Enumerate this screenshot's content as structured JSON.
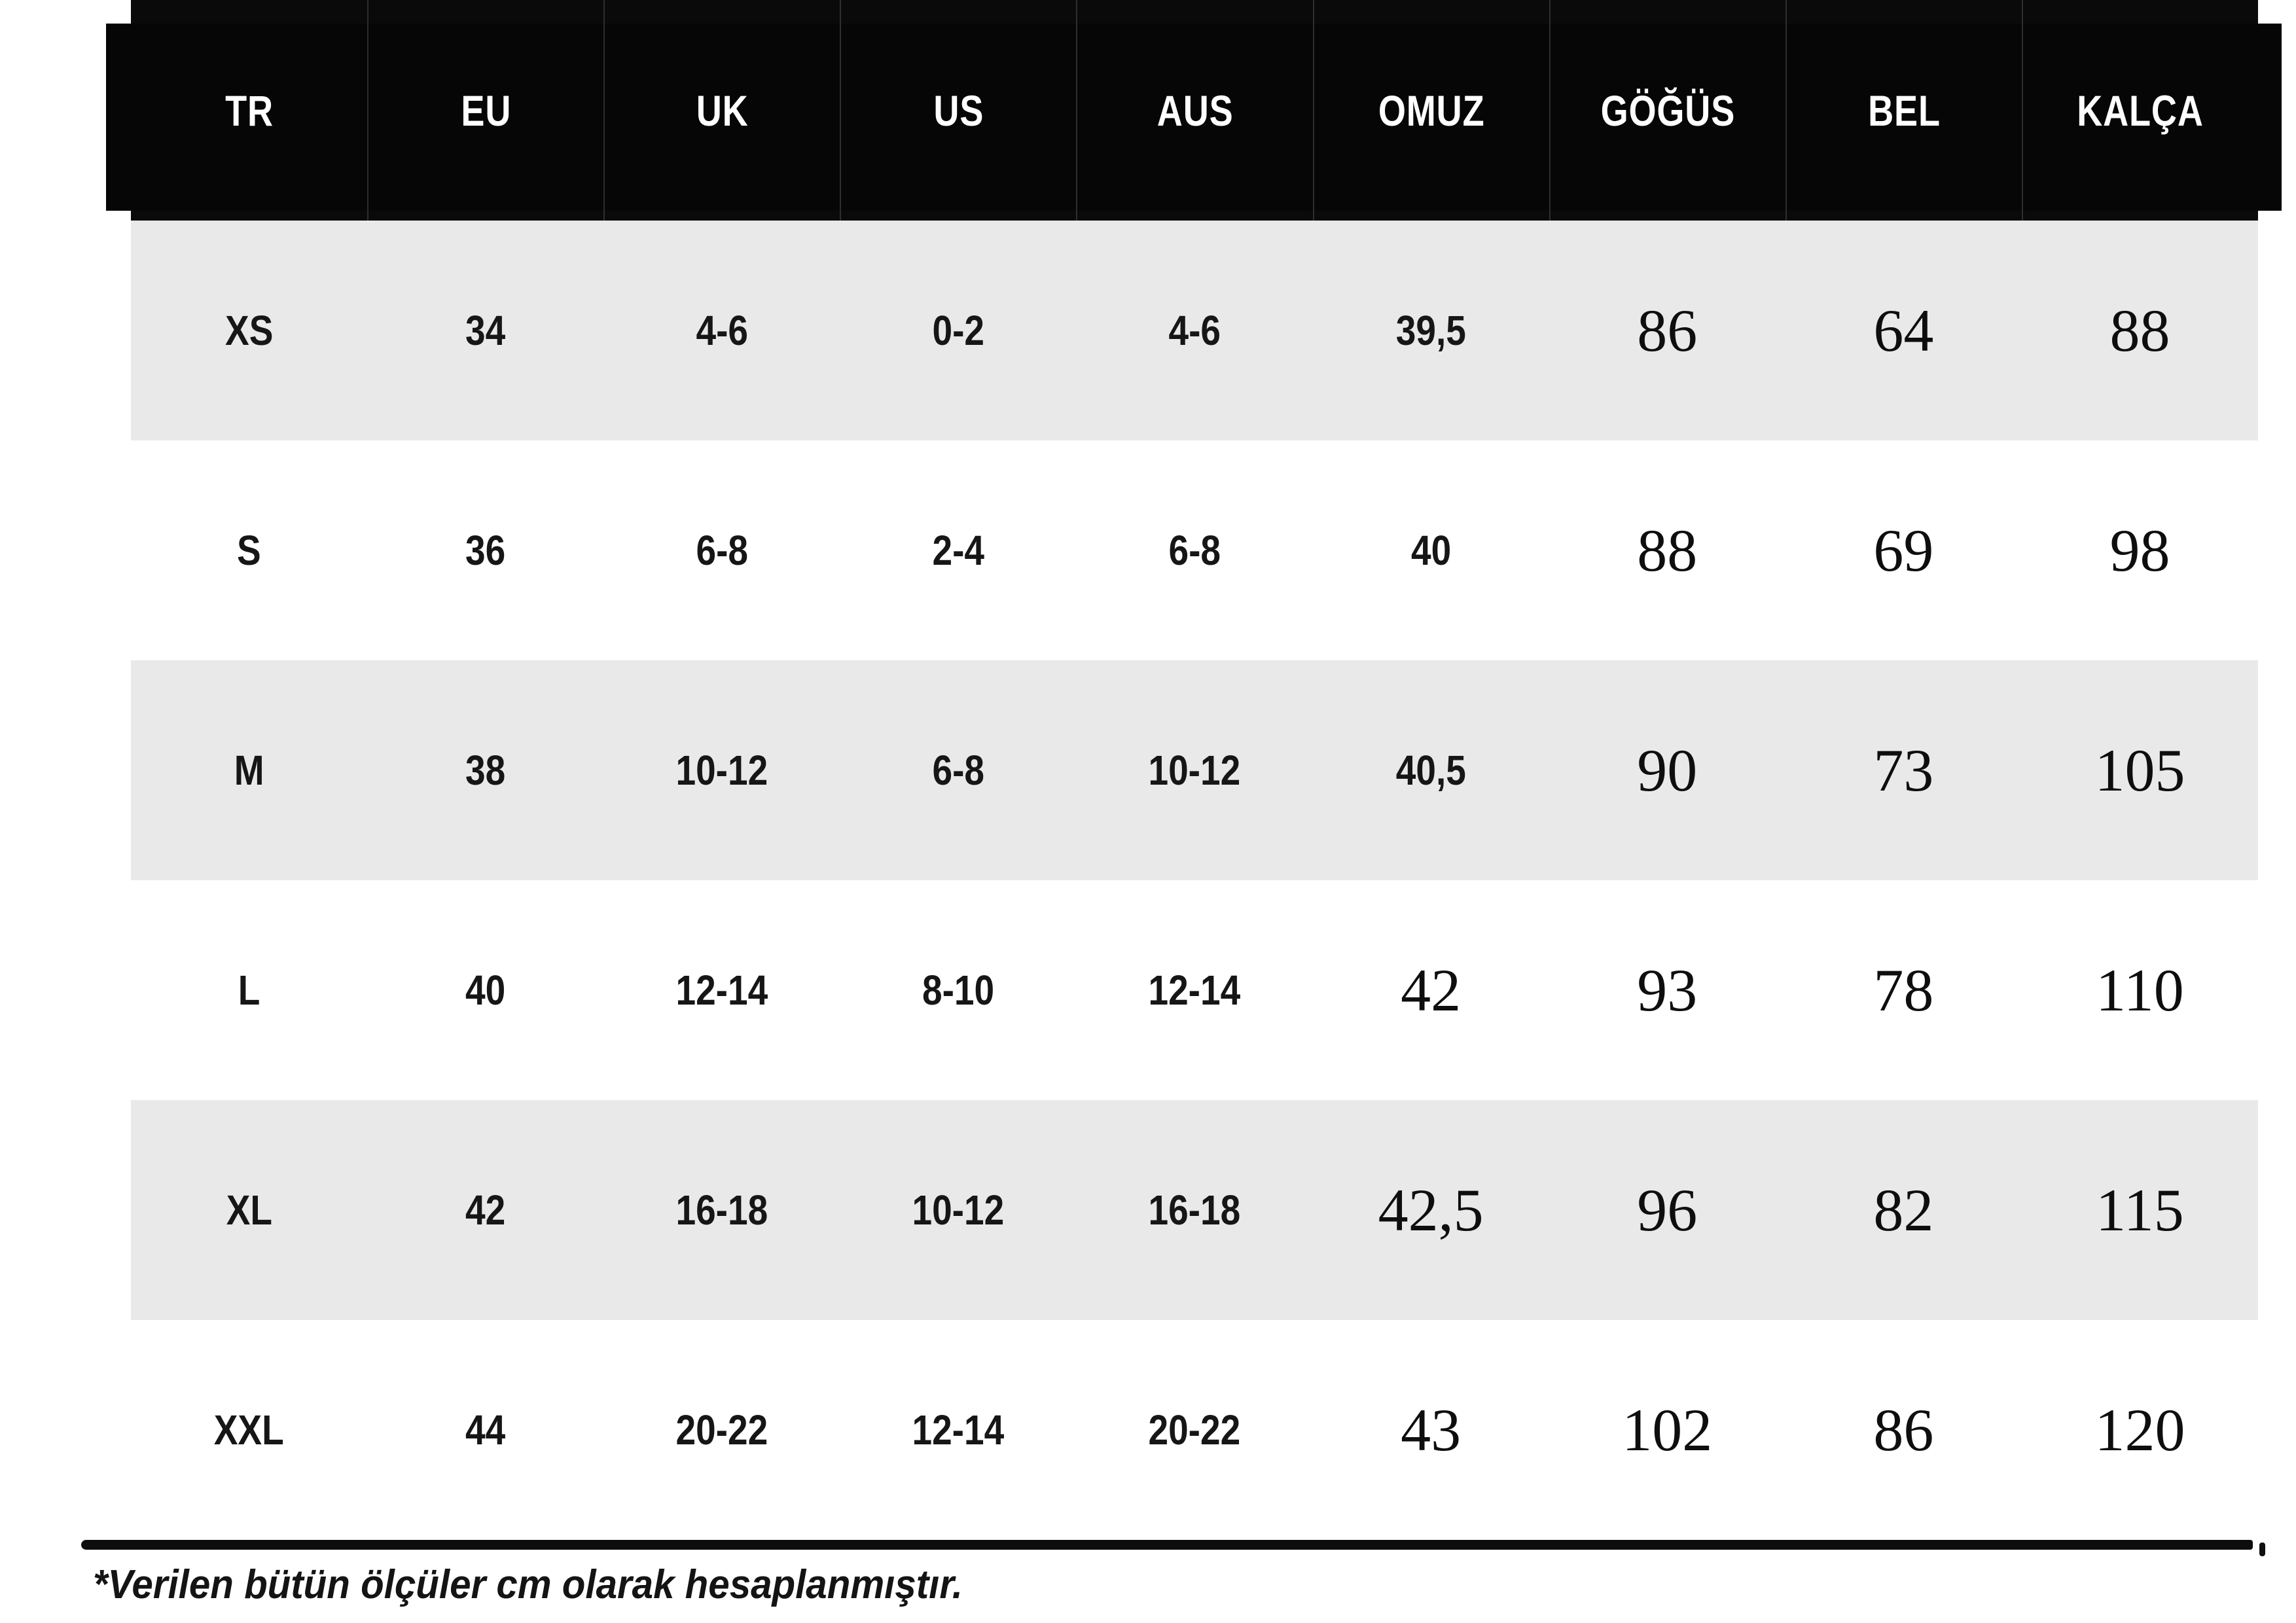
{
  "table": {
    "columns": [
      "TR",
      "EU",
      "UK",
      "US",
      "AUS",
      "OMUZ",
      "GÖĞÜS",
      "BEL",
      "KALÇA"
    ],
    "rows": [
      {
        "cells": [
          "XS",
          "34",
          "4-6",
          "0-2",
          "4-6",
          "39,5",
          "86",
          "64",
          "88"
        ]
      },
      {
        "cells": [
          "S",
          "36",
          "6-8",
          "2-4",
          "6-8",
          "40",
          "88",
          "69",
          "98"
        ]
      },
      {
        "cells": [
          "M",
          "38",
          "10-12",
          "6-8",
          "10-12",
          "40,5",
          "90",
          "73",
          "105"
        ]
      },
      {
        "cells": [
          "L",
          "40",
          "12-14",
          "8-10",
          "12-14",
          "42",
          "93",
          "78",
          "110"
        ]
      },
      {
        "cells": [
          "XL",
          "42",
          "16-18",
          "10-12",
          "16-18",
          "42,5",
          "96",
          "82",
          "115"
        ]
      },
      {
        "cells": [
          "XXL",
          "44",
          "20-22",
          "12-14",
          "20-22",
          "43",
          "102",
          "86",
          "120"
        ]
      }
    ]
  },
  "footnote": "*Verilen bütün ölçüler cm olarak hesaplanmıştır.",
  "colors": {
    "header_bg": "#0a0a0a",
    "header_text": "#ffffff",
    "row_alt_bg": "#e9e9e9",
    "row_bg": "#ffffff",
    "text": "#161616"
  }
}
